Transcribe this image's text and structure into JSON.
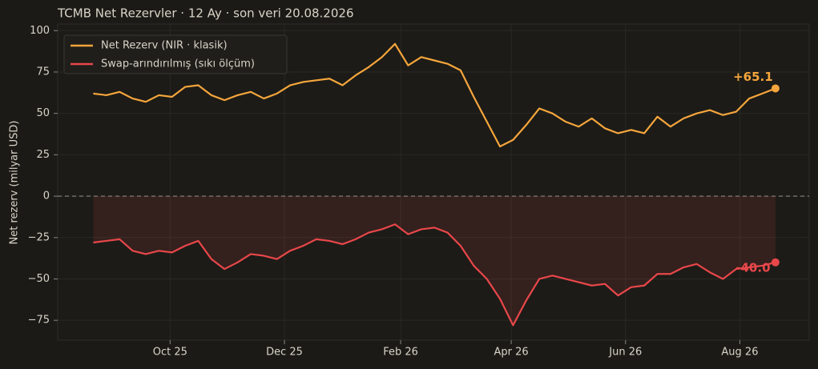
{
  "chart_data": {
    "type": "line",
    "title": "TCMB Net Rezervler · 12 Ay · son veri 20.08.2026",
    "ylabel": "Net rezerv (milyar USD)",
    "x": [
      0,
      7,
      14,
      21,
      28,
      35,
      42,
      49,
      56,
      63,
      70,
      77,
      84,
      91,
      98,
      105,
      112,
      119,
      126,
      133,
      140,
      147,
      154,
      161,
      168,
      175,
      182,
      189,
      196,
      203,
      210,
      217,
      224,
      231,
      238,
      245,
      252,
      259,
      266,
      273,
      280,
      287,
      294,
      301,
      308,
      315,
      322,
      329,
      336,
      343,
      350,
      357,
      364
    ],
    "xlim": [
      -19,
      382
    ],
    "xticks": [
      {
        "value": 41,
        "label": "Oct 25"
      },
      {
        "value": 102,
        "label": "Dec 25"
      },
      {
        "value": 164,
        "label": "Feb 26"
      },
      {
        "value": 223,
        "label": "Apr 26"
      },
      {
        "value": 284,
        "label": "Jun 26"
      },
      {
        "value": 345,
        "label": "Aug 26"
      }
    ],
    "ylim": [
      -87,
      104
    ],
    "yticks": [
      {
        "value": -75,
        "label": "−75"
      },
      {
        "value": -50,
        "label": "−50"
      },
      {
        "value": -25,
        "label": "−25"
      },
      0,
      25,
      50,
      75,
      100
    ],
    "grid": true,
    "legend": "upper left",
    "fill_to_zero": "Swap-arındırılmış (sıkı ölçüm)",
    "series": [
      {
        "name": "Net Rezerv (NIR · klasik)",
        "color": "#f5a53c",
        "values": [
          62,
          61,
          63,
          59,
          57,
          61,
          60,
          66,
          67,
          61,
          58,
          61,
          63,
          59,
          62,
          67,
          69,
          70,
          71,
          67,
          73,
          78,
          84,
          92,
          79,
          84,
          82,
          80,
          76,
          60,
          45,
          30,
          34,
          43,
          53,
          50,
          45,
          42,
          47,
          41,
          38,
          40,
          38,
          48,
          42,
          47,
          50,
          52,
          49,
          51,
          59,
          62,
          65.1
        ],
        "value_labels": [
          null,
          null,
          null,
          null,
          null,
          null,
          null,
          null,
          null,
          null,
          null,
          null,
          null,
          null,
          null,
          null,
          null,
          null,
          null,
          null,
          null,
          null,
          null,
          null,
          null,
          null,
          null,
          null,
          null,
          null,
          null,
          null,
          null,
          null,
          null,
          null,
          null,
          null,
          null,
          null,
          null,
          null,
          null,
          null,
          null,
          null,
          null,
          null,
          null,
          null,
          null,
          null,
          "+65.1"
        ]
      },
      {
        "name": "Swap-arındırılmış (sıkı ölçüm)",
        "color": "#e8474a",
        "values": [
          -28,
          -27,
          -26,
          -33,
          -35,
          -33,
          -34,
          -30,
          -27,
          -38,
          -44,
          -40,
          -35,
          -36,
          -38,
          -33,
          -30,
          -26,
          -27,
          -29,
          -26,
          -22,
          -20,
          -17,
          -23,
          -20,
          -19,
          -22,
          -30,
          -42,
          -50,
          -62,
          -78,
          -63,
          -50,
          -48,
          -50,
          -52,
          -54,
          -53,
          -60,
          -55,
          -54,
          -47,
          -47,
          -43,
          -41,
          -46,
          -50,
          -44,
          -43,
          -42,
          -40.0
        ],
        "value_labels": [
          null,
          null,
          null,
          null,
          null,
          null,
          null,
          null,
          null,
          null,
          null,
          null,
          null,
          null,
          null,
          null,
          null,
          null,
          null,
          null,
          null,
          null,
          null,
          null,
          null,
          null,
          null,
          null,
          null,
          null,
          null,
          null,
          null,
          null,
          null,
          null,
          null,
          null,
          null,
          null,
          null,
          null,
          null,
          null,
          null,
          null,
          null,
          null,
          null,
          null,
          null,
          null,
          "-40.0"
        ]
      }
    ]
  }
}
